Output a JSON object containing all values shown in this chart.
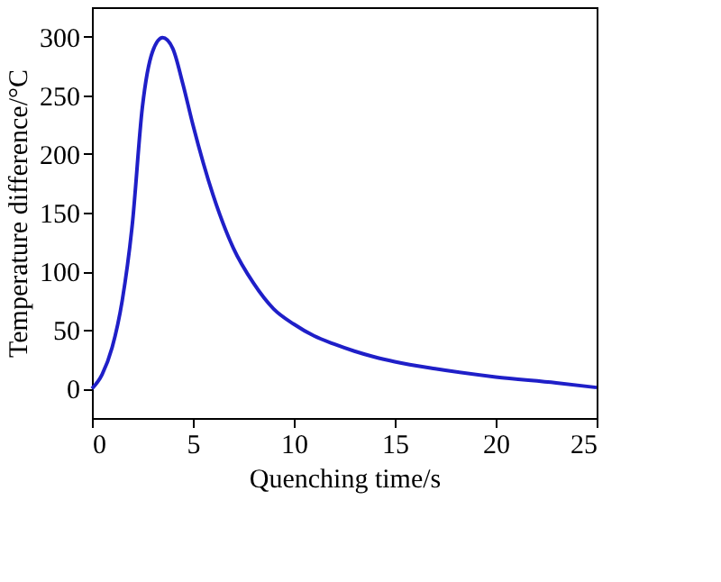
{
  "chart_data": {
    "type": "line",
    "xlabel": "Quenching time/s",
    "ylabel": "Temperature difference/°C",
    "xlim": [
      0,
      25
    ],
    "xticks": [
      0,
      5,
      10,
      15,
      20,
      25
    ],
    "ylim": [
      -25,
      325
    ],
    "yticks": [
      0,
      50,
      100,
      150,
      200,
      250,
      300
    ],
    "grid": false,
    "series": [
      {
        "color": "#1f1fc8",
        "x": [
          0,
          0.5,
          1,
          1.5,
          2,
          2.5,
          3,
          3.5,
          4,
          4.5,
          5,
          6,
          7,
          8,
          9,
          10,
          11,
          12,
          13,
          14,
          15,
          17,
          20,
          23,
          25
        ],
        "values": [
          0,
          12,
          35,
          75,
          140,
          240,
          287,
          299,
          290,
          260,
          225,
          165,
          120,
          90,
          68,
          55,
          45,
          38,
          32,
          27,
          23,
          17,
          10,
          5,
          1
        ]
      }
    ]
  }
}
